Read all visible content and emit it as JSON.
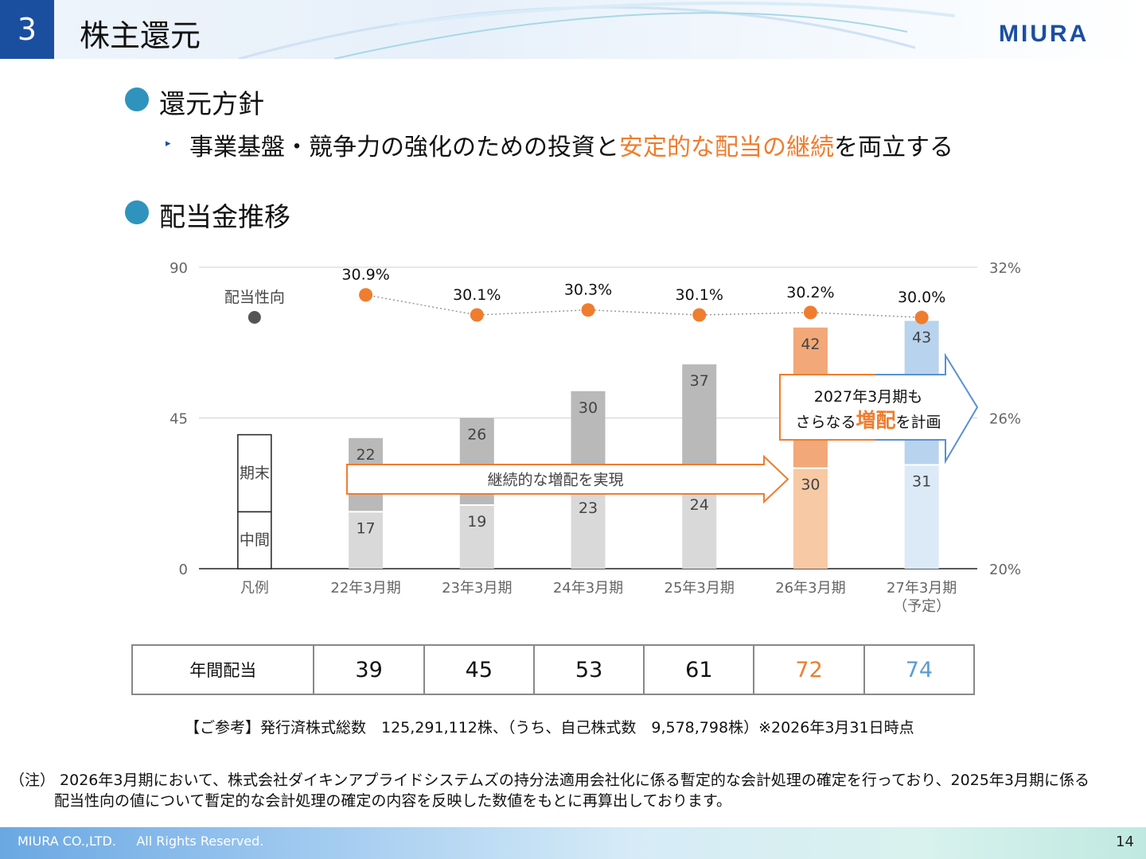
{
  "header": {
    "section_number": "3",
    "title": "株主還元",
    "logo_text": "MIURA",
    "brand_color": "#1a4fa0"
  },
  "policy": {
    "heading": "還元方針",
    "bullet_marker": "▸",
    "text_before": "事業基盤・競争力の強化のための投資と",
    "text_highlight": "安定的な配当の継続",
    "text_after": "を両立する",
    "highlight_color": "#ef7d2e"
  },
  "dividend": {
    "heading": "配当金推移"
  },
  "chart_data": {
    "type": "bar",
    "stacked": true,
    "categories": [
      "凡例",
      "22年3月期",
      "23年3月期",
      "24年3月期",
      "25年3月期",
      "26年3月期",
      "27年3月期"
    ],
    "category_sublabels": [
      "",
      "",
      "",
      "",
      "",
      "",
      "（予定）"
    ],
    "series": [
      {
        "name": "中間",
        "values": [
          null,
          17,
          19,
          23,
          24,
          30,
          31
        ]
      },
      {
        "name": "期末",
        "values": [
          null,
          22,
          26,
          30,
          37,
          42,
          43
        ]
      }
    ],
    "payout_ratio": {
      "name": "配当性向",
      "values": [
        null,
        30.9,
        30.1,
        30.3,
        30.1,
        30.2,
        30.0
      ],
      "labels": [
        "",
        "30.9%",
        "30.1%",
        "30.3%",
        "30.1%",
        "30.2%",
        "30.0%"
      ]
    },
    "y_left": {
      "ylim": [
        0,
        90
      ],
      "ticks": [
        "0",
        "45",
        "90"
      ]
    },
    "y_right": {
      "ylim": [
        20,
        32
      ],
      "ticks": [
        "20%",
        "26%",
        "32%"
      ]
    },
    "legend": {
      "ratio_label": "配当性向",
      "period_end_label": "期末",
      "interim_label": "中間"
    },
    "annotations": {
      "arrow_continuous": "継続的な増配を実現",
      "forecast_line1": "2027年3月期も",
      "forecast_line2_before": "さらなる",
      "forecast_line2_highlight": "増配",
      "forecast_line2_after": "を計画"
    },
    "grid": true,
    "colors": {
      "interim_past": "#d9d9d9",
      "period_end_past": "#b9b9b9",
      "interim_26": "#f7c9a5",
      "period_end_26": "#f2a878",
      "interim_27": "#dce9f6",
      "period_end_27": "#b8d3ee",
      "ratio_marker": "#ef7d2e",
      "legend_marker": "#555555"
    }
  },
  "annual_table": {
    "label": "年間配当",
    "values": [
      "39",
      "45",
      "53",
      "61",
      "72",
      "74"
    ],
    "value_colors": [
      "#111111",
      "#111111",
      "#111111",
      "#111111",
      "#ef7d2e",
      "#5b9bd5"
    ]
  },
  "reference": "【ご参考】発行済株式総数　125,291,112株、（うち、自己株式数　9,578,798株）※2026年3月31日時点",
  "note": {
    "line1": "（注） 2026年3月期において、株式会社ダイキンアプライドシステムズの持分法適用会社化に係る暫定的な会計処理の確定を行っており、2025年3月期に係る",
    "line2": "配当性向の値について暫定的な会計処理の確定の内容を反映した数値をもとに再算出しております。"
  },
  "footer": {
    "copyright": "MIURA CO.,LTD.     All Rights Reserved.",
    "page_number": "14"
  }
}
